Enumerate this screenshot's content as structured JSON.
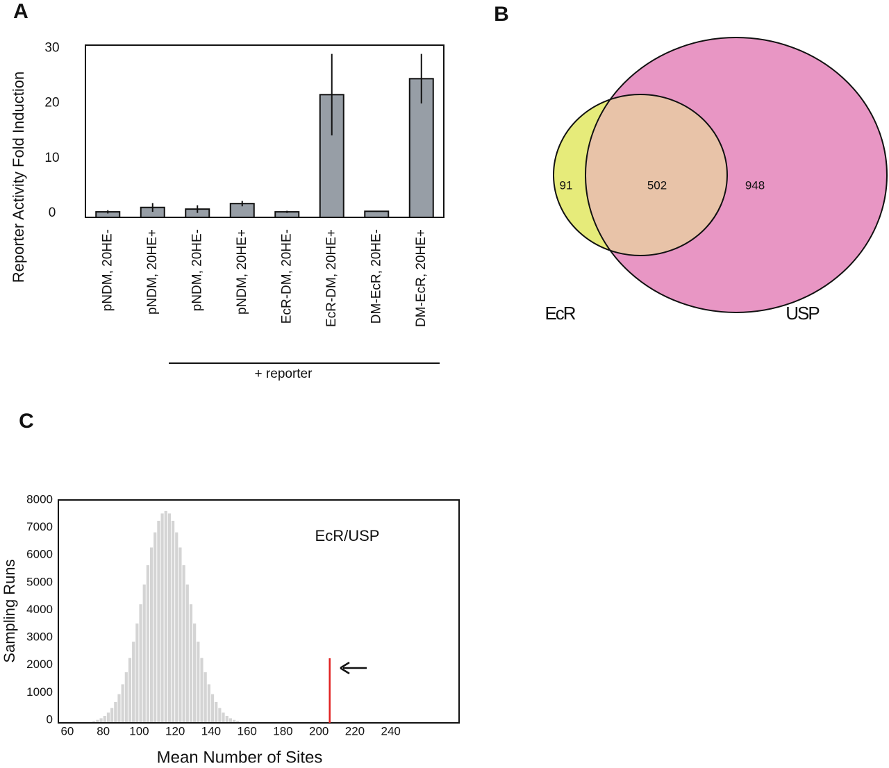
{
  "chart_data": [
    {
      "type": "bar",
      "panel": "A",
      "ylabel": "Reporter Activity Fold Induction",
      "categories": [
        "pNDM, 20HE-",
        "pNDM, 20HE+",
        "pNDM, 20HE-",
        "pNDM, 20HE+",
        "EcR-DM, 20HE-",
        "EcR-DM, 20HE+",
        "DM-EcR, 20HE-",
        "DM-EcR, 20HE+"
      ],
      "values": [
        1.0,
        1.8,
        1.5,
        2.5,
        1.0,
        22.3,
        1.1,
        25.2
      ],
      "errors": [
        0.3,
        0.8,
        0.7,
        0.5,
        0.2,
        7.4,
        0.1,
        4.5
      ],
      "color": "#979ea6",
      "ylim": [
        0,
        31.3
      ],
      "yticks": [
        0,
        10,
        20,
        30
      ],
      "annotation": "+ reporter"
    },
    {
      "type": "venn",
      "panel": "B",
      "sets": [
        {
          "name": "EcR",
          "color": "#e6eb7a"
        },
        {
          "name": "USP",
          "color": "#e896c4"
        }
      ],
      "overlap_color": "#e8c3a8",
      "values": [
        91,
        502,
        948
      ]
    },
    {
      "type": "histogram",
      "panel": "C",
      "xlabel": "Mean Number of Sites",
      "ylabel": "Sampling Runs",
      "annotation": "EcR/USP",
      "bins": [
        74,
        76,
        78,
        80,
        82,
        84,
        86,
        88,
        90,
        92,
        94,
        96,
        98,
        100,
        102,
        104,
        106,
        108,
        110,
        112,
        114,
        116,
        118,
        120,
        122,
        124,
        126,
        128,
        130,
        132,
        134,
        136,
        138,
        140,
        142,
        144,
        146,
        148,
        150,
        152,
        154,
        156,
        158,
        160
      ],
      "values": [
        68,
        108,
        167,
        252,
        372,
        538,
        757,
        1042,
        1402,
        1840,
        2358,
        2951,
        3612,
        4310,
        5029,
        5728,
        6373,
        6923,
        7344,
        7610,
        7700,
        7610,
        7344,
        6923,
        6373,
        5728,
        5029,
        4310,
        3612,
        2951,
        2358,
        1840,
        1402,
        1042,
        757,
        538,
        372,
        252,
        167,
        108,
        68,
        42,
        25
      ],
      "color": "#d4d4d4",
      "marker": {
        "x": 206,
        "color": "#e02020"
      },
      "xlim": [
        55,
        278
      ],
      "ylim": [
        0,
        8100
      ],
      "xticks": [
        60,
        80,
        100,
        120,
        140,
        160,
        180,
        200,
        220,
        240
      ],
      "yticks": [
        0,
        1000,
        2000,
        3000,
        4000,
        5000,
        6000,
        7000,
        8000
      ]
    }
  ]
}
